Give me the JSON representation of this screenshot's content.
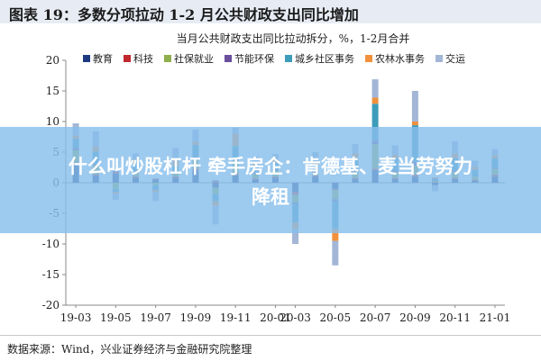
{
  "header": {
    "title": "图表 19：多数分项拉动 1-2 月公共财政支出同比增加"
  },
  "footer": {
    "source": "数据来源：Wind，兴业证券经济与金融研究院整理"
  },
  "overlay": {
    "line1": "什么叫炒股杠杆 牵手房企：肯德基、麦当劳努力",
    "line2": "降租"
  },
  "chart_data": {
    "type": "bar",
    "stacked": true,
    "title": "当月公共财政支出同比拉动拆分，%，1-2月合并",
    "ylim": [
      -20,
      20
    ],
    "yticks": [
      -20,
      -15,
      -10,
      -5,
      0,
      5,
      10,
      15,
      20
    ],
    "xticklabels": [
      "19-03",
      "19-05",
      "19-07",
      "19-09",
      "19-11",
      "20-01",
      "20-03",
      "20-05",
      "20-07",
      "20-09",
      "20-11",
      "21-01"
    ],
    "legend_position": "top",
    "categories": [
      "19-03",
      "19-04",
      "19-05",
      "19-06",
      "19-07",
      "19-08",
      "19-09",
      "19-10",
      "19-11",
      "19-12",
      "20-01",
      "20-03",
      "20-04",
      "20-05",
      "20-06",
      "20-07",
      "20-08",
      "20-09",
      "20-10",
      "20-11",
      "20-12",
      "21-01"
    ],
    "series": [
      {
        "name": "教育",
        "color": "#1f3a80",
        "values": [
          3.0,
          1.2,
          1.5,
          0.8,
          0.5,
          0.8,
          2.0,
          -0.8,
          1.2,
          0.5,
          0.8,
          -1.5,
          1.0,
          -1.0,
          0.6,
          2.0,
          0.6,
          1.0,
          -0.4,
          0.6,
          0.3,
          1.0
        ]
      },
      {
        "name": "科技",
        "color": "#c0282d",
        "values": [
          0.3,
          0.2,
          0.2,
          0.2,
          0.1,
          0.2,
          0.3,
          0.2,
          0.4,
          0.2,
          0.2,
          -0.5,
          0.2,
          -0.2,
          0.2,
          0.3,
          0.2,
          0.3,
          0.1,
          0.2,
          0.2,
          0.3
        ]
      },
      {
        "name": "社保就业",
        "color": "#8fae4c",
        "values": [
          2.0,
          1.5,
          -1.0,
          0.5,
          -0.4,
          0.5,
          1.5,
          -1.0,
          2.0,
          0.8,
          1.0,
          -1.2,
          0.5,
          -1.5,
          1.0,
          4.0,
          1.0,
          1.5,
          0.2,
          1.0,
          0.5,
          1.0
        ]
      },
      {
        "name": "节能环保",
        "color": "#6a4f9c",
        "values": [
          0.4,
          0.2,
          0.2,
          0.2,
          0.1,
          0.2,
          0.4,
          0.2,
          0.4,
          0.2,
          0.2,
          -0.3,
          0.2,
          -0.3,
          0.2,
          0.6,
          0.2,
          0.6,
          0.1,
          0.2,
          0.1,
          0.2
        ]
      },
      {
        "name": "城乡社区事务",
        "color": "#3d9cba",
        "values": [
          1.5,
          2.0,
          -0.5,
          1.5,
          -0.8,
          1.0,
          2.0,
          -1.2,
          2.0,
          1.0,
          1.0,
          -3.0,
          1.0,
          -4.5,
          2.0,
          6.0,
          2.0,
          6.0,
          0.3,
          2.0,
          1.0,
          1.5
        ]
      },
      {
        "name": "农林水事务",
        "color": "#f1913c",
        "values": [
          0.5,
          0.8,
          -0.3,
          0.6,
          -0.3,
          1.0,
          0.5,
          -0.8,
          2.0,
          0.6,
          0.5,
          -1.0,
          0.6,
          -2.0,
          0.8,
          1.0,
          0.6,
          0.6,
          0.2,
          0.8,
          0.5,
          0.5
        ]
      },
      {
        "name": "交运",
        "color": "#a3b6d6",
        "values": [
          2.0,
          2.5,
          -1.0,
          1.0,
          -1.5,
          2.0,
          2.0,
          -3.0,
          1.0,
          1.0,
          1.0,
          -2.5,
          1.5,
          -4.0,
          1.5,
          3.0,
          1.5,
          5.0,
          -1.0,
          2.0,
          1.0,
          1.0
        ]
      }
    ]
  }
}
